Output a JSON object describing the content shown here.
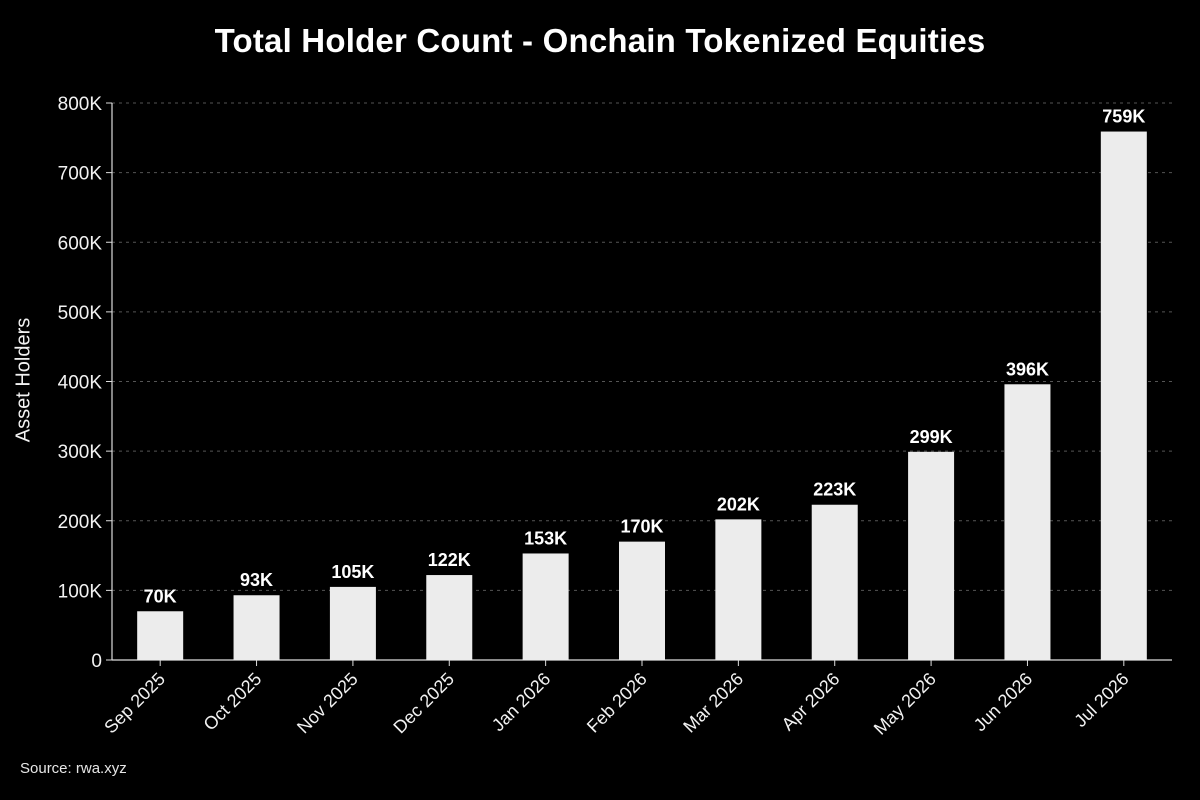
{
  "chart_data": {
    "type": "bar",
    "title": "Total Holder Count - Onchain Tokenized Equities",
    "ylabel": "Asset Holders",
    "xlabel": "",
    "source": "Source: rwa.xyz",
    "categories": [
      "Sep 2025",
      "Oct 2025",
      "Nov 2025",
      "Dec 2025",
      "Jan 2026",
      "Feb 2026",
      "Mar 2026",
      "Apr 2026",
      "May 2026",
      "Jun 2026",
      "Jul 2026"
    ],
    "values": [
      70000,
      93000,
      105000,
      122000,
      153000,
      170000,
      202000,
      223000,
      299000,
      396000,
      759000
    ],
    "data_labels": [
      "70K",
      "93K",
      "105K",
      "122K",
      "153K",
      "170K",
      "202K",
      "223K",
      "299K",
      "396K",
      "759K"
    ],
    "ylim": [
      0,
      800000
    ],
    "yticks": [
      0,
      100000,
      200000,
      300000,
      400000,
      500000,
      600000,
      700000,
      800000
    ],
    "ytick_labels": [
      "0",
      "100K",
      "200K",
      "300K",
      "400K",
      "500K",
      "600K",
      "700K",
      "800K"
    ],
    "grid": true,
    "legend": "none",
    "colors": {
      "background": "#000000",
      "bar": "#ececec",
      "text": "#ffffff",
      "grid": "#555555",
      "axis": "#dddddd"
    }
  }
}
